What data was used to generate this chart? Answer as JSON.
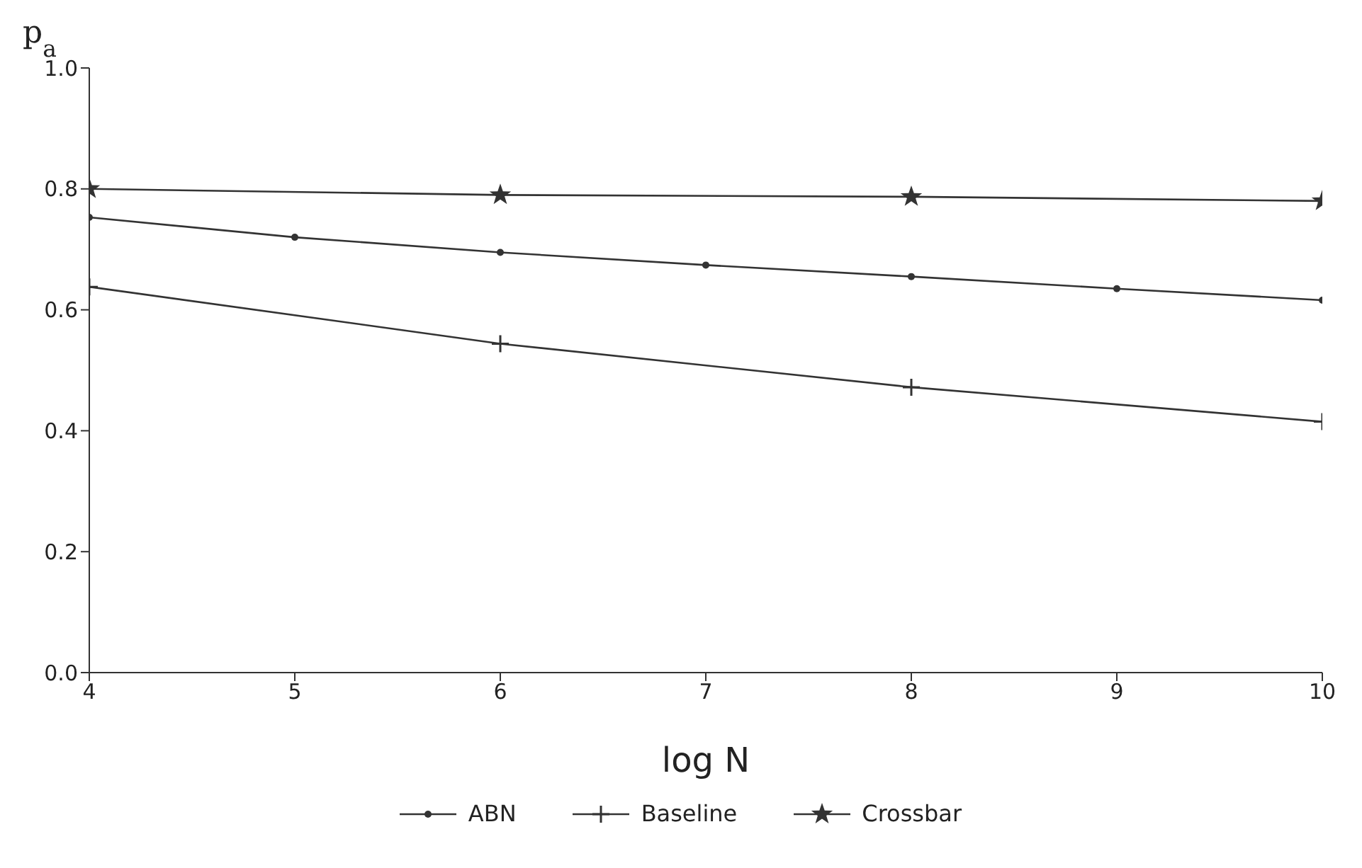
{
  "chart_data": {
    "type": "line",
    "xlabel": "log N",
    "ylabel": "p$_{a}$",
    "xlim": [
      4,
      10
    ],
    "xticks": [
      4,
      5,
      6,
      7,
      8,
      9,
      10
    ],
    "ylim": [
      0,
      1
    ],
    "yticks": [
      {
        "value": 0,
        "label": "0.0"
      },
      0.2,
      0.4,
      0.6,
      0.8,
      {
        "value": 1,
        "label": "1.0"
      }
    ],
    "grid": false,
    "legend": "bottom",
    "line_style": "solid",
    "series": [
      {
        "name": "ABN",
        "color": "#333333",
        "marker": "circle",
        "x": [
          4,
          5,
          6,
          7,
          8,
          9,
          10
        ],
        "values": [
          0.753,
          0.72,
          0.695,
          0.674,
          0.655,
          0.635,
          0.616
        ]
      },
      {
        "name": "Baseline",
        "color": "#333333",
        "marker": "cross",
        "x": [
          4,
          6,
          8,
          10
        ],
        "values": [
          0.638,
          0.544,
          0.472,
          0.415
        ]
      },
      {
        "name": "Crossbar",
        "color": "#333333",
        "marker": "star",
        "x": [
          4,
          6,
          8,
          10
        ],
        "values": [
          0.8,
          0.79,
          0.787,
          0.78
        ]
      }
    ]
  }
}
